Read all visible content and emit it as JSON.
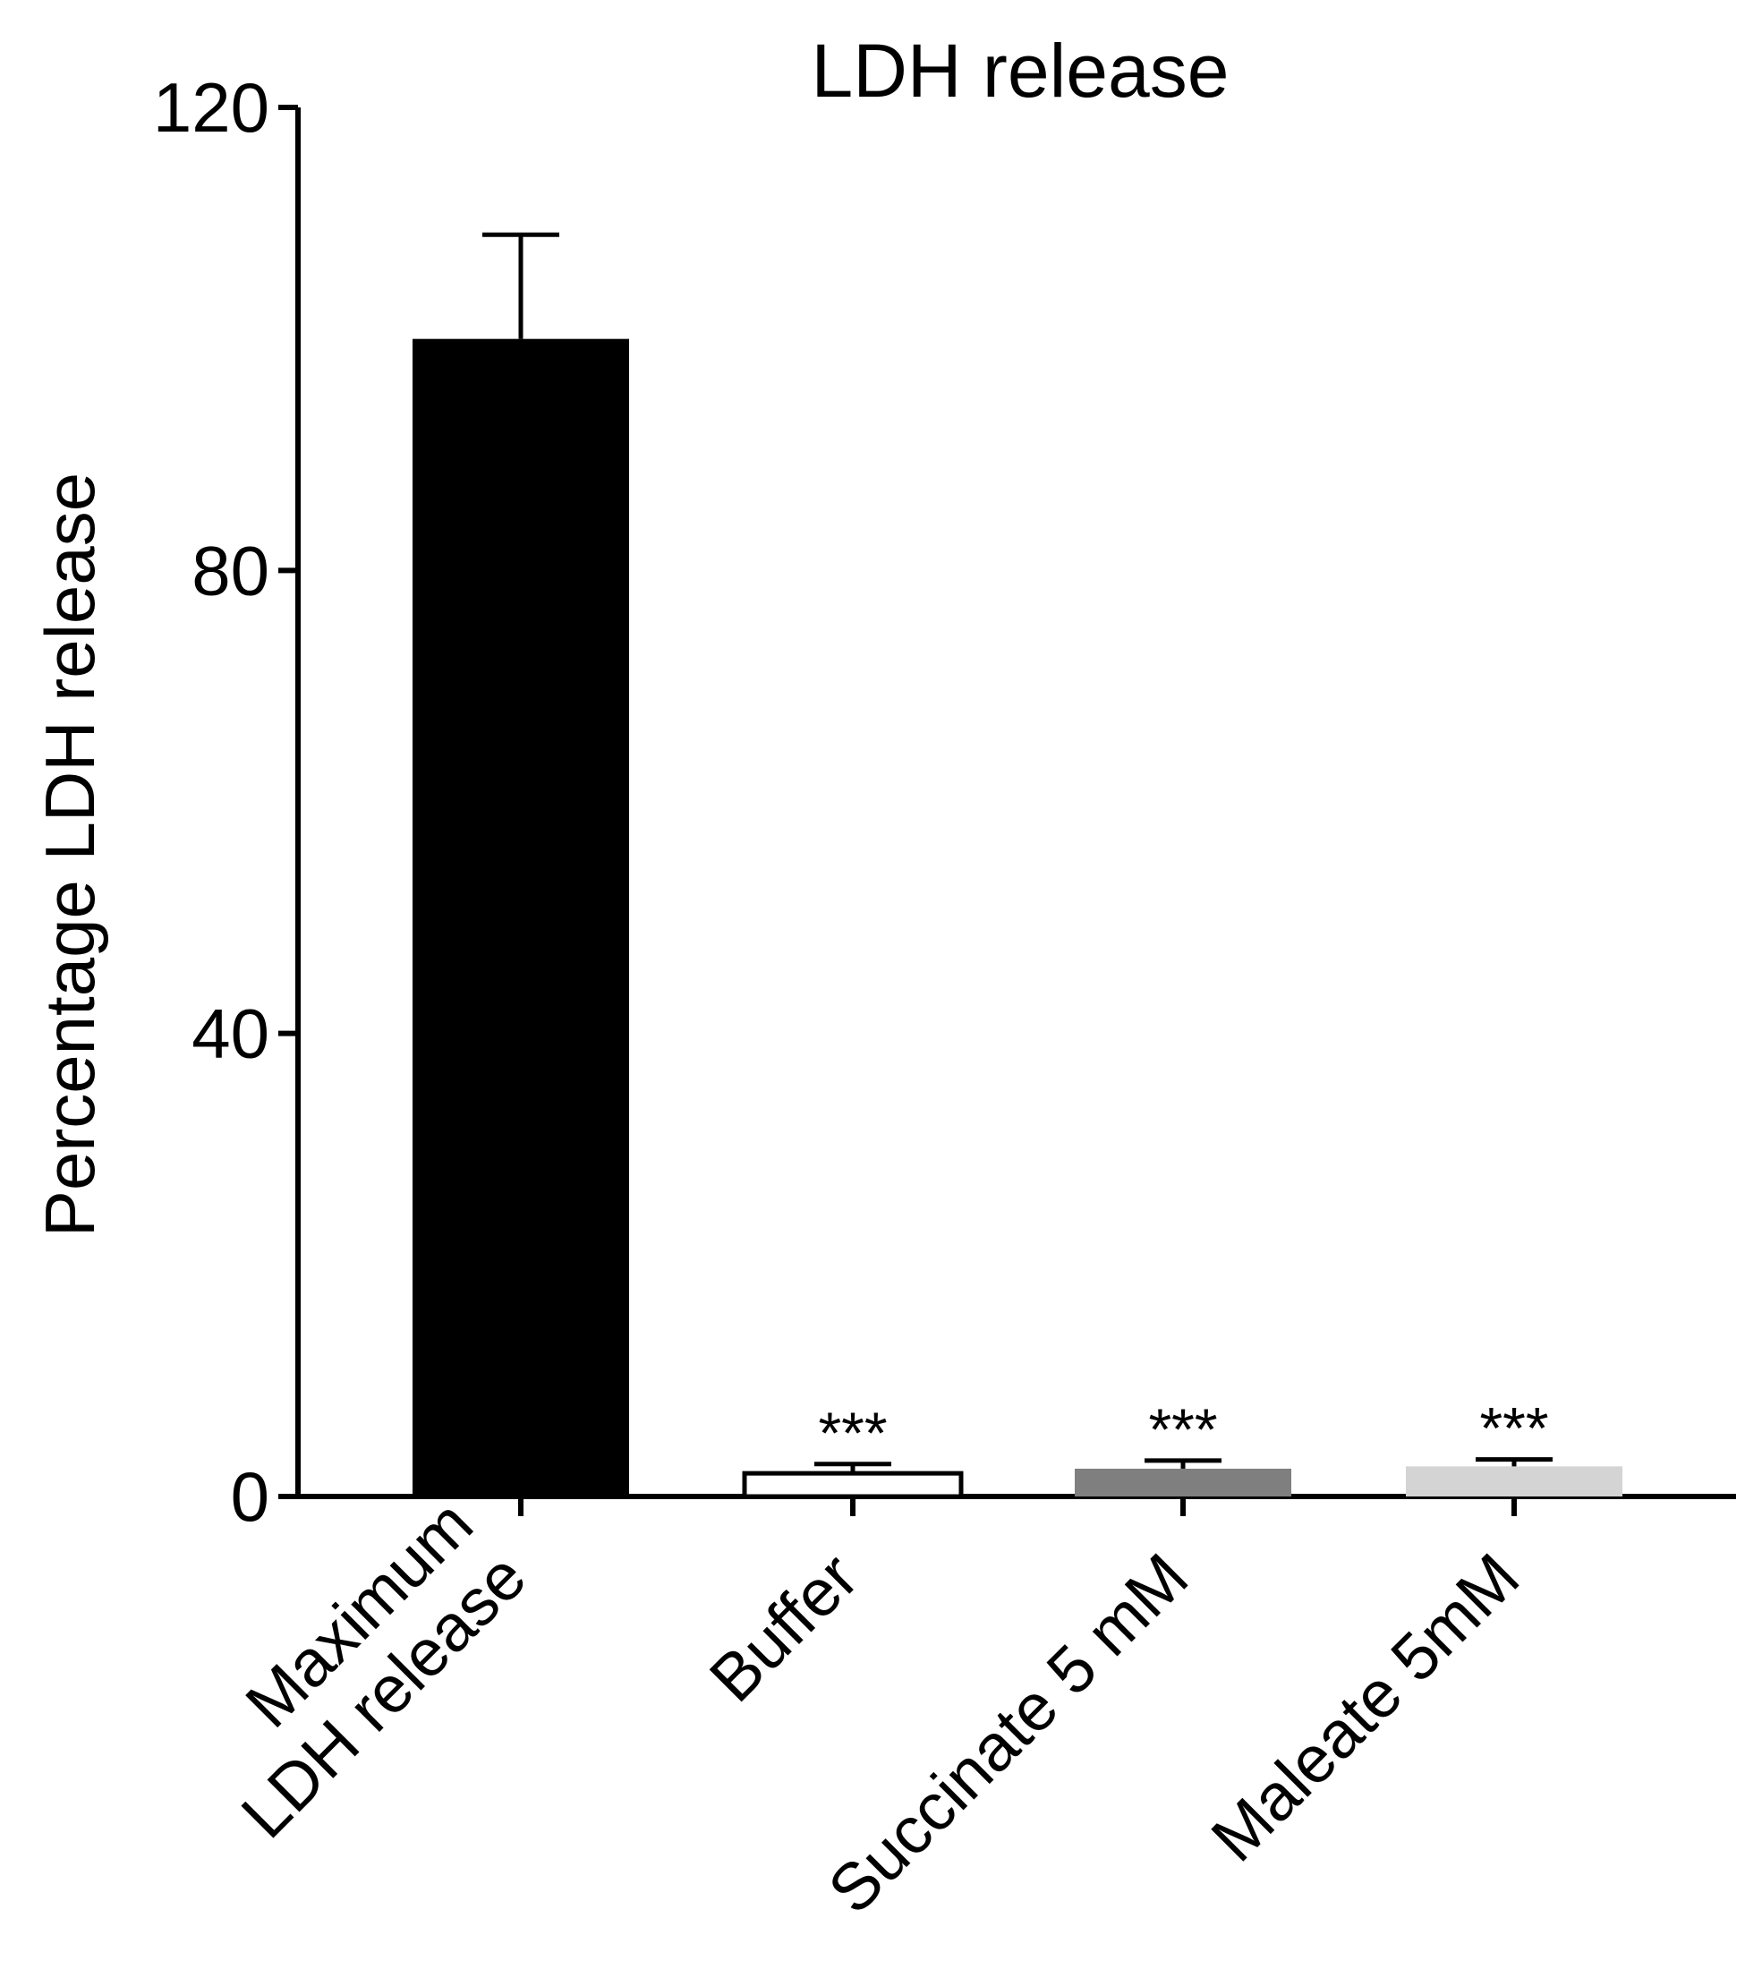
{
  "chart_data": {
    "type": "bar",
    "title": "LDH release",
    "xlabel": "",
    "ylabel": "Percentage LDH release",
    "ylim": [
      0,
      120
    ],
    "yticks": [
      "0",
      "40",
      "80",
      "120"
    ],
    "categories": [
      [
        "Maximum",
        "LDH release"
      ],
      [
        "Buffer"
      ],
      [
        "Succinate 5 mM"
      ],
      [
        "Maleate 5mM"
      ]
    ],
    "values": [
      100,
      2,
      2.4,
      2.6
    ],
    "errors": [
      9,
      0.8,
      0.7,
      0.6
    ],
    "colors": [
      "#000000",
      "#ffffff",
      "#7f7f7f",
      "#d4d4d4"
    ],
    "significance": [
      "",
      "***",
      "***",
      "***"
    ],
    "grid": false,
    "legend": "none"
  }
}
